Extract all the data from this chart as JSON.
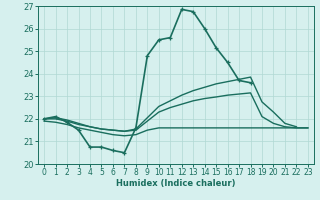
{
  "title": "",
  "xlabel": "Humidex (Indice chaleur)",
  "xlim": [
    -0.5,
    23.5
  ],
  "ylim": [
    20,
    27
  ],
  "yticks": [
    20,
    21,
    22,
    23,
    24,
    25,
    26,
    27
  ],
  "xticks": [
    0,
    1,
    2,
    3,
    4,
    5,
    6,
    7,
    8,
    9,
    10,
    11,
    12,
    13,
    14,
    15,
    16,
    17,
    18,
    19,
    20,
    21,
    22,
    23
  ],
  "bg_color": "#d6f0ee",
  "grid_color": "#b0d8d4",
  "line_color": "#1a6e5e",
  "lines": [
    {
      "x": [
        0,
        1,
        2,
        3,
        4,
        5,
        6,
        7,
        8,
        9,
        10,
        11,
        12,
        13,
        14,
        15,
        16,
        17,
        18,
        19,
        20
      ],
      "y": [
        22.0,
        22.1,
        21.85,
        21.5,
        20.75,
        20.75,
        20.6,
        20.5,
        21.6,
        24.8,
        25.5,
        25.6,
        26.85,
        26.75,
        26.0,
        25.15,
        24.5,
        23.7,
        23.6,
        null,
        null
      ],
      "marker": "+",
      "lw": 1.2
    },
    {
      "x": [
        0,
        1,
        2,
        3,
        4,
        5,
        6,
        7,
        8,
        9,
        10,
        11,
        12,
        13,
        14,
        15,
        16,
        17,
        18,
        19,
        20,
        21,
        22,
        23
      ],
      "y": [
        22.0,
        22.05,
        21.95,
        21.8,
        21.65,
        21.55,
        21.5,
        21.45,
        21.55,
        22.05,
        22.55,
        22.8,
        23.05,
        23.25,
        23.4,
        23.55,
        23.65,
        23.75,
        23.85,
        22.75,
        22.3,
        21.8,
        21.65,
        null
      ],
      "marker": null,
      "lw": 1.0
    },
    {
      "x": [
        0,
        1,
        2,
        3,
        4,
        5,
        6,
        7,
        8,
        9,
        10,
        11,
        12,
        13,
        14,
        15,
        16,
        17,
        18,
        19,
        20,
        21,
        22,
        23
      ],
      "y": [
        22.0,
        22.0,
        21.9,
        21.75,
        21.65,
        21.55,
        21.5,
        21.45,
        21.5,
        21.9,
        22.3,
        22.5,
        22.65,
        22.8,
        22.9,
        22.97,
        23.05,
        23.1,
        23.15,
        22.1,
        21.8,
        21.65,
        21.6,
        21.6
      ],
      "marker": null,
      "lw": 1.0
    },
    {
      "x": [
        0,
        1,
        2,
        3,
        4,
        5,
        6,
        7,
        8,
        9,
        10,
        11,
        12,
        13,
        14,
        15,
        16,
        17,
        18,
        19,
        20,
        21,
        22,
        23
      ],
      "y": [
        21.9,
        21.85,
        21.75,
        21.6,
        21.5,
        21.4,
        21.3,
        21.25,
        21.3,
        21.5,
        21.6,
        21.6,
        21.6,
        21.6,
        21.6,
        21.6,
        21.6,
        21.6,
        21.6,
        21.6,
        21.6,
        21.6,
        21.6,
        21.6
      ],
      "marker": null,
      "lw": 1.0
    }
  ]
}
